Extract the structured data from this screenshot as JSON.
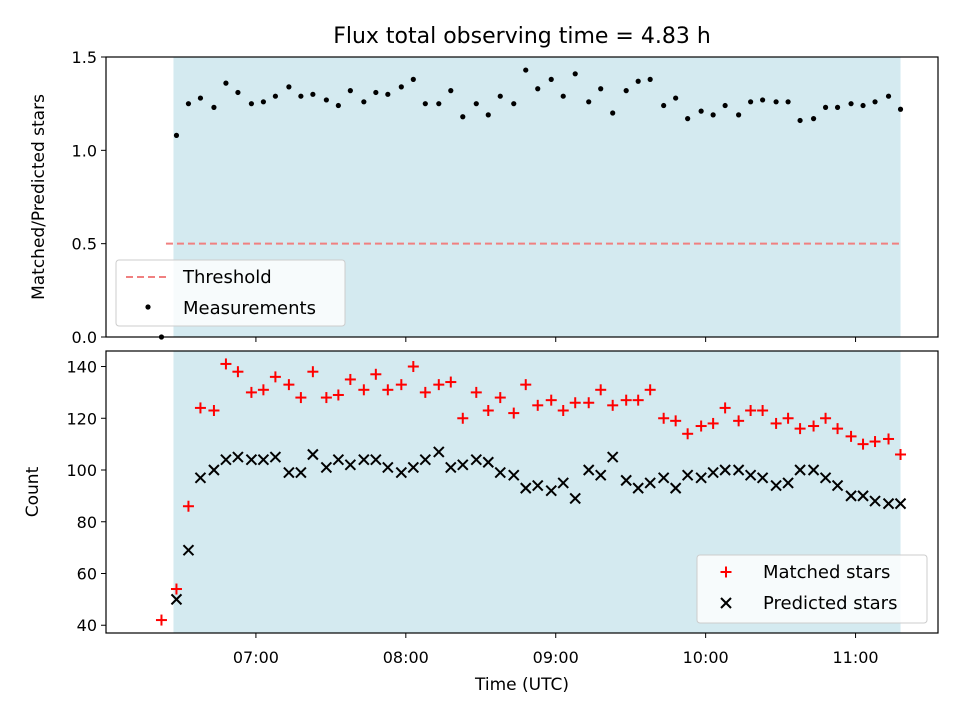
{
  "title": "Flux total observing time = 4.83 h",
  "colors": {
    "shade": "#d4eaf0",
    "threshold": "#f08080",
    "matched": "#ff0000",
    "predicted": "#000000",
    "measurement": "#000000"
  },
  "chart_data": [
    {
      "type": "scatter",
      "ylabel": "Matched/Predicted stars",
      "ylim": [
        0,
        1.5
      ],
      "yticks": [
        "0.0",
        "0.5",
        "1.0",
        "1.5"
      ],
      "x_unit": "hours UTC",
      "xlim": [
        6.0,
        11.55
      ],
      "shaded_interval": [
        6.45,
        11.3
      ],
      "threshold": {
        "label": "Threshold",
        "value": 0.5,
        "x_start": 6.4,
        "x_end": 11.3
      },
      "measurements_label": "Measurements",
      "legend_position": "lower-left",
      "x": [
        6.37,
        6.47,
        6.55,
        6.63,
        6.72,
        6.8,
        6.88,
        6.97,
        7.05,
        7.13,
        7.22,
        7.3,
        7.38,
        7.47,
        7.55,
        7.63,
        7.72,
        7.8,
        7.88,
        7.97,
        8.05,
        8.13,
        8.22,
        8.3,
        8.38,
        8.47,
        8.55,
        8.63,
        8.72,
        8.8,
        8.88,
        8.97,
        9.05,
        9.13,
        9.22,
        9.3,
        9.38,
        9.47,
        9.55,
        9.63,
        9.72,
        9.8,
        9.88,
        9.97,
        10.05,
        10.13,
        10.22,
        10.3,
        10.38,
        10.47,
        10.55,
        10.63,
        10.72,
        10.8,
        10.88,
        10.97,
        11.05,
        11.13,
        11.22,
        11.3
      ],
      "values": [
        0.0,
        1.08,
        1.25,
        1.28,
        1.23,
        1.36,
        1.31,
        1.25,
        1.26,
        1.29,
        1.34,
        1.29,
        1.3,
        1.27,
        1.24,
        1.32,
        1.26,
        1.31,
        1.3,
        1.34,
        1.38,
        1.25,
        1.25,
        1.32,
        1.18,
        1.25,
        1.19,
        1.29,
        1.25,
        1.43,
        1.33,
        1.38,
        1.29,
        1.41,
        1.26,
        1.33,
        1.2,
        1.32,
        1.37,
        1.38,
        1.24,
        1.28,
        1.17,
        1.21,
        1.19,
        1.24,
        1.19,
        1.26,
        1.27,
        1.26,
        1.26,
        1.16,
        1.17,
        1.23,
        1.23,
        1.25,
        1.24,
        1.26,
        1.29,
        1.22
      ]
    },
    {
      "type": "scatter",
      "ylabel": "Count",
      "xlabel": "Time (UTC)",
      "ylim": [
        37,
        146
      ],
      "yticks": [
        40,
        60,
        80,
        100,
        120,
        140
      ],
      "x_unit": "hours UTC",
      "xlim": [
        6.0,
        11.55
      ],
      "xticks": [
        {
          "value": 7,
          "label": "07:00"
        },
        {
          "value": 8,
          "label": "08:00"
        },
        {
          "value": 9,
          "label": "09:00"
        },
        {
          "value": 10,
          "label": "10:00"
        },
        {
          "value": 11,
          "label": "11:00"
        }
      ],
      "shaded_interval": [
        6.45,
        11.3
      ],
      "legend_position": "lower-right",
      "x": [
        6.37,
        6.47,
        6.55,
        6.63,
        6.72,
        6.8,
        6.88,
        6.97,
        7.05,
        7.13,
        7.22,
        7.3,
        7.38,
        7.47,
        7.55,
        7.63,
        7.72,
        7.8,
        7.88,
        7.97,
        8.05,
        8.13,
        8.22,
        8.3,
        8.38,
        8.47,
        8.55,
        8.63,
        8.72,
        8.8,
        8.88,
        8.97,
        9.05,
        9.13,
        9.22,
        9.3,
        9.38,
        9.47,
        9.55,
        9.63,
        9.72,
        9.8,
        9.88,
        9.97,
        10.05,
        10.13,
        10.22,
        10.3,
        10.38,
        10.47,
        10.55,
        10.63,
        10.72,
        10.8,
        10.88,
        10.97,
        11.05,
        11.13,
        11.22,
        11.3
      ],
      "series": [
        {
          "name": "Matched stars",
          "marker": "+",
          "values": [
            42,
            54,
            86,
            124,
            123,
            141,
            138,
            130,
            131,
            136,
            133,
            128,
            138,
            128,
            129,
            135,
            131,
            137,
            131,
            133,
            140,
            130,
            133,
            134,
            120,
            130,
            123,
            128,
            122,
            133,
            125,
            127,
            123,
            126,
            126,
            131,
            125,
            127,
            127,
            131,
            120,
            119,
            114,
            117,
            118,
            124,
            119,
            123,
            123,
            118,
            120,
            116,
            117,
            120,
            116,
            113,
            110,
            111,
            112,
            106
          ]
        },
        {
          "name": "Predicted stars",
          "marker": "x",
          "values": [
            null,
            50,
            69,
            97,
            100,
            104,
            105,
            104,
            104,
            105,
            99,
            99,
            106,
            101,
            104,
            102,
            104,
            104,
            101,
            99,
            101,
            104,
            107,
            101,
            102,
            104,
            103,
            99,
            98,
            93,
            94,
            92,
            95,
            89,
            100,
            98,
            105,
            96,
            93,
            95,
            97,
            93,
            98,
            97,
            99,
            100,
            100,
            98,
            97,
            94,
            95,
            100,
            100,
            97,
            94,
            90,
            90,
            88,
            87,
            87
          ]
        }
      ]
    }
  ]
}
